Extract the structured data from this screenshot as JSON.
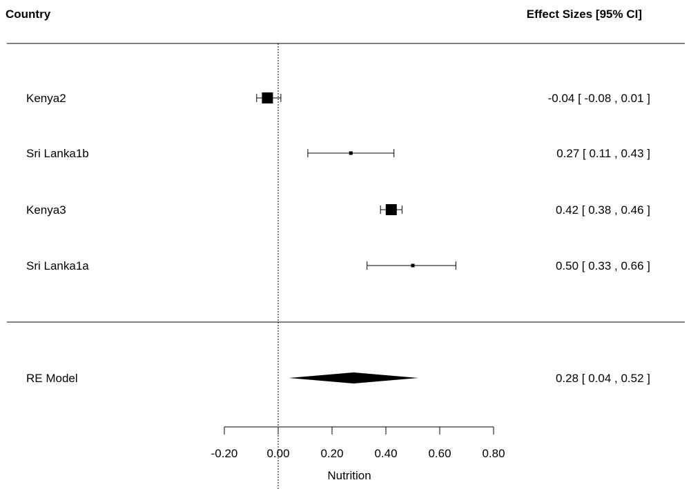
{
  "chart_data": {
    "type": "forest",
    "header_left": "Country",
    "header_right": "Effect Sizes [95% CI]",
    "xlabel": "Nutrition",
    "xticks": [
      "-0.20",
      "0.00",
      "0.20",
      "0.40",
      "0.60",
      "0.80"
    ],
    "xlim": [
      -0.2,
      0.8
    ],
    "reference_line": 0,
    "studies": [
      {
        "label": "Kenya2",
        "estimate": -0.04,
        "lower": -0.08,
        "upper": 0.01,
        "ci_text": "-0.04 [ -0.08 , 0.01 ]",
        "weight": 1.0
      },
      {
        "label": "Sri Lanka1b",
        "estimate": 0.27,
        "lower": 0.11,
        "upper": 0.43,
        "ci_text": "0.27 [  0.11 , 0.43 ]",
        "weight": 0.1
      },
      {
        "label": "Kenya3",
        "estimate": 0.42,
        "lower": 0.38,
        "upper": 0.46,
        "ci_text": "0.42 [  0.38 , 0.46 ]",
        "weight": 1.0
      },
      {
        "label": "Sri Lanka1a",
        "estimate": 0.5,
        "lower": 0.33,
        "upper": 0.66,
        "ci_text": "0.50 [  0.33 , 0.66 ]",
        "weight": 0.1
      }
    ],
    "summary": {
      "label": "RE Model",
      "estimate": 0.28,
      "lower": 0.04,
      "upper": 0.52,
      "ci_text": "0.28 [  0.04 , 0.52 ]"
    }
  }
}
